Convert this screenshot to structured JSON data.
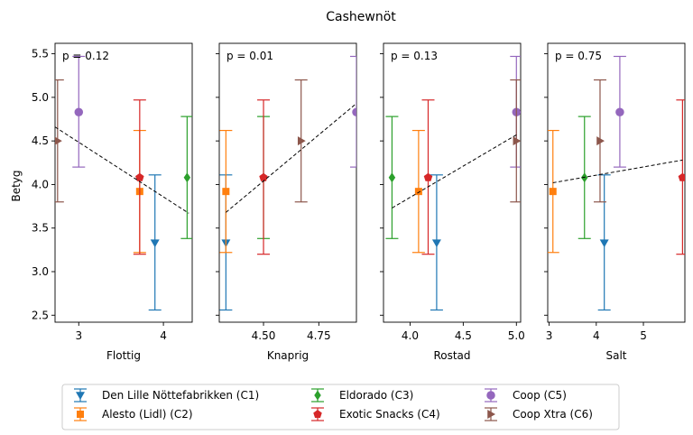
{
  "chart_data": {
    "type": "scatter",
    "title": "Cashewnöt",
    "ylabel": "Betyg",
    "ylim": [
      2.42,
      5.62
    ],
    "yticks": [
      2.5,
      3.0,
      3.5,
      4.0,
      4.5,
      5.0,
      5.5
    ],
    "ytick_labels": [
      "2.5",
      "3.0",
      "3.5",
      "4.0",
      "4.5",
      "5.0",
      "5.5"
    ],
    "grid": false,
    "legend_position": "bottom",
    "series": [
      {
        "name": "Den Lille Nöttefabrikken (C1)",
        "marker": "triangle-down",
        "color": "#1f77b4",
        "y": 3.33,
        "err_low": 2.56,
        "err_high": 4.11
      },
      {
        "name": "Alesto (Lidl) (C2)",
        "marker": "square",
        "color": "#ff7f0e",
        "y": 3.92,
        "err_low": 3.22,
        "err_high": 4.62
      },
      {
        "name": "Eldorado (C3)",
        "marker": "diamond",
        "color": "#2ca02c",
        "y": 4.08,
        "err_low": 3.38,
        "err_high": 4.78
      },
      {
        "name": "Exotic Snacks (C4)",
        "marker": "pentagon",
        "color": "#d62728",
        "y": 4.08,
        "err_low": 3.2,
        "err_high": 4.97
      },
      {
        "name": "Coop (C5)",
        "marker": "circle",
        "color": "#9467bd",
        "y": 4.83,
        "err_low": 4.2,
        "err_high": 5.47
      },
      {
        "name": "Coop Xtra (C6)",
        "marker": "triangle-right",
        "color": "#8c564b",
        "y": 4.5,
        "err_low": 3.8,
        "err_high": 5.2
      }
    ],
    "panels": [
      {
        "xlabel": "Flottig",
        "p_label": "p = 0.12",
        "xlim": [
          2.72,
          4.34
        ],
        "xticks": [
          3,
          4
        ],
        "xtick_labels": [
          "3",
          "4"
        ],
        "x": [
          3.9,
          3.72,
          4.28,
          3.72,
          3.0,
          2.75
        ],
        "trend": {
          "x": [
            2.72,
            4.3
          ],
          "y": [
            4.66,
            3.67
          ]
        }
      },
      {
        "xlabel": "Knaprig",
        "p_label": "p = 0.01",
        "xlim": [
          4.3,
          4.92
        ],
        "xticks": [
          4.5,
          4.75
        ],
        "xtick_labels": [
          "4.50",
          "4.75"
        ],
        "x": [
          4.33,
          4.33,
          4.5,
          4.5,
          4.92,
          4.67
        ],
        "trend": {
          "x": [
            4.33,
            4.92
          ],
          "y": [
            3.68,
            4.93
          ]
        }
      },
      {
        "xlabel": "Rostad",
        "p_label": "p = 0.13",
        "xlim": [
          3.75,
          5.04
        ],
        "xticks": [
          4.0,
          4.5,
          5.0
        ],
        "xtick_labels": [
          "4.0",
          "4.5",
          "5.0"
        ],
        "x": [
          4.25,
          4.08,
          3.83,
          4.17,
          5.0,
          5.0
        ],
        "trend": {
          "x": [
            3.83,
            5.0
          ],
          "y": [
            3.73,
            4.57
          ]
        }
      },
      {
        "xlabel": "Salt",
        "p_label": "p = 0.75",
        "xlim": [
          2.97,
          5.88
        ],
        "xticks": [
          3,
          4,
          5
        ],
        "xtick_labels": [
          "3",
          "4",
          "5"
        ],
        "x": [
          4.17,
          3.08,
          3.75,
          5.83,
          4.5,
          4.08
        ],
        "trend": {
          "x": [
            3.08,
            5.83
          ],
          "y": [
            4.02,
            4.28
          ]
        }
      }
    ]
  }
}
